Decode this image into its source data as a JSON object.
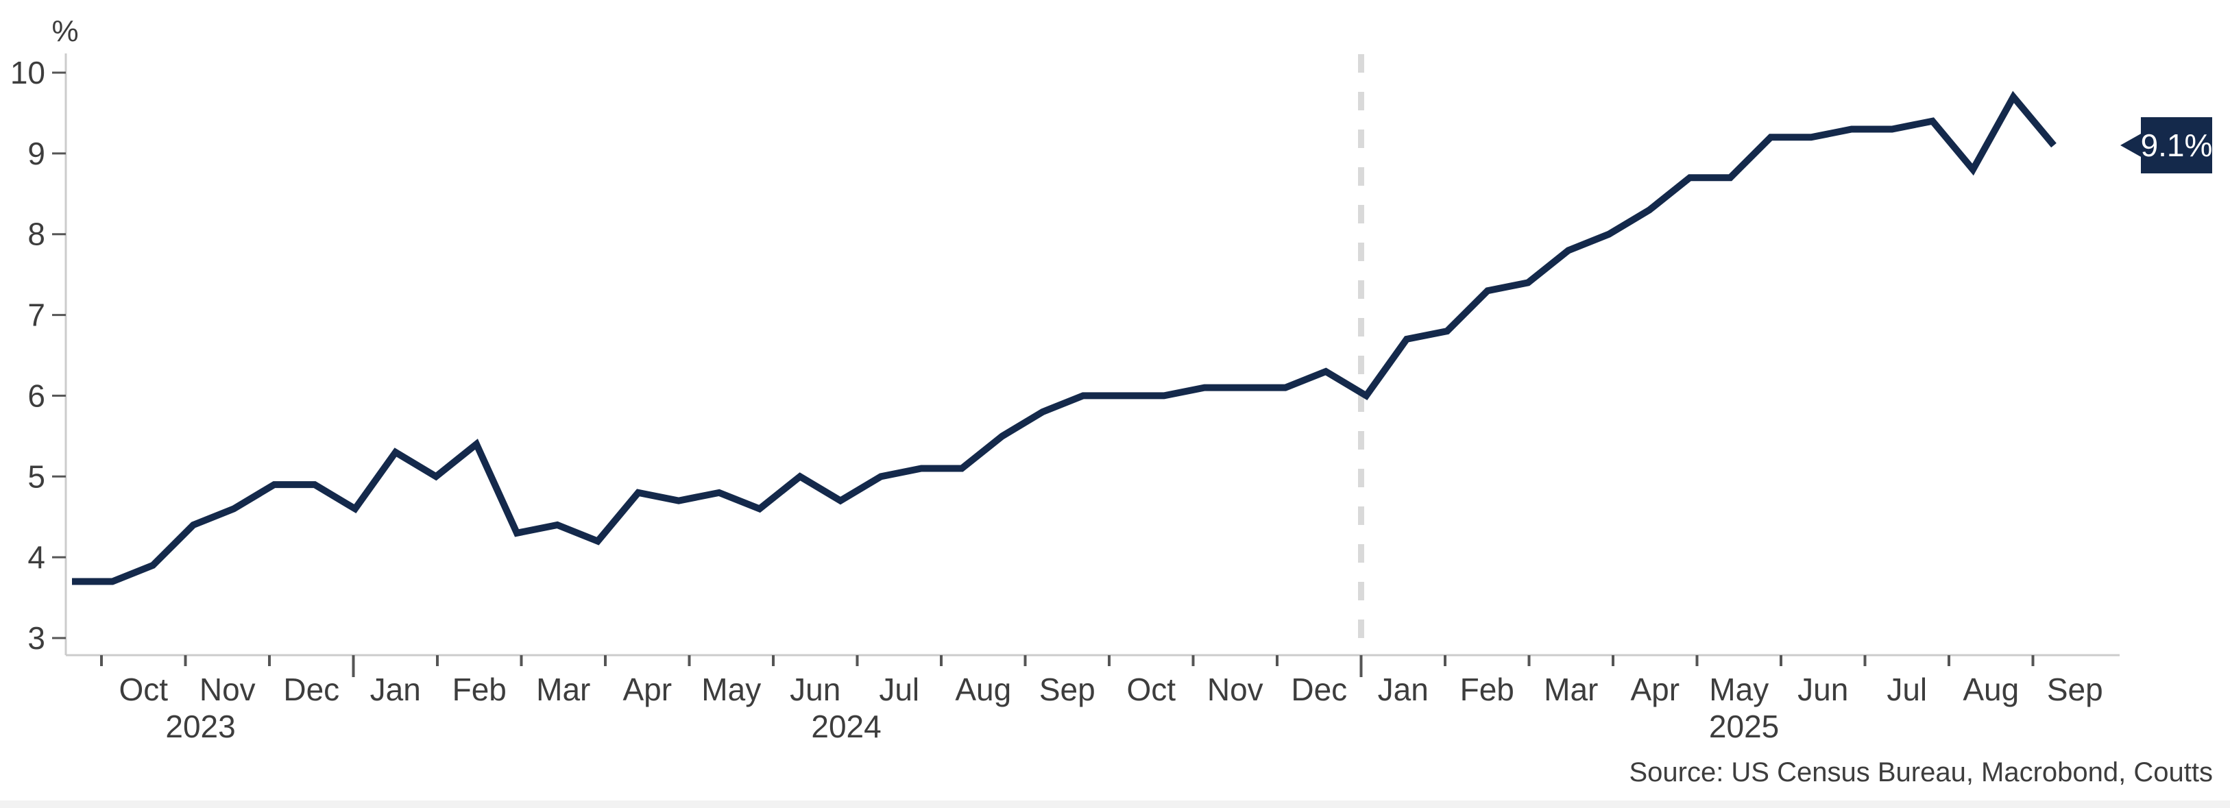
{
  "chart_data": {
    "type": "line",
    "unit_label": "%",
    "period": "Oct 2023 - Sep 2025",
    "frequency": "biweekly",
    "ylim": [
      3,
      10
    ],
    "yticks": [
      10,
      9,
      8,
      7,
      6,
      5,
      4,
      3
    ],
    "x_months": [
      "Oct",
      "Nov",
      "Dec",
      "Jan",
      "Feb",
      "Mar",
      "Apr",
      "May",
      "Jun",
      "Jul",
      "Aug",
      "Sep",
      "Oct",
      "Nov",
      "Dec",
      "Jan",
      "Feb",
      "Mar",
      "Apr",
      "May",
      "Jun",
      "Jul",
      "Aug",
      "Sep"
    ],
    "x_years": [
      {
        "label": "2023",
        "pos": 1.18
      },
      {
        "label": "2024",
        "pos": 8.87
      },
      {
        "label": "2025",
        "pos": 19.56
      }
    ],
    "year_tick_boundaries": [
      3,
      15
    ],
    "divider": {
      "month_boundary": 15,
      "style": "dashed",
      "meaning": "start of Jan 2025"
    },
    "values": [
      3.7,
      3.7,
      3.9,
      4.4,
      4.6,
      4.9,
      4.9,
      4.6,
      5.3,
      5.0,
      5.4,
      4.3,
      4.4,
      4.2,
      4.8,
      4.7,
      4.8,
      4.6,
      5.0,
      4.7,
      5.0,
      5.1,
      5.1,
      5.5,
      5.8,
      6.0,
      6.0,
      6.0,
      6.1,
      6.1,
      6.1,
      6.3,
      6.0,
      6.7,
      6.8,
      7.3,
      7.4,
      7.8,
      8.0,
      8.3,
      8.7,
      8.7,
      9.2,
      9.2,
      9.3,
      9.3,
      9.4,
      8.8,
      9.7,
      9.1
    ],
    "annotation": {
      "text": "9.1%",
      "value": 9.1
    },
    "source": "Source: US Census Bureau, Macrobond, Coutts",
    "grid": "off",
    "legend": "none",
    "colors": {
      "line": "#14294b",
      "callout_bg": "#14294b",
      "callout_text": "#ffffff",
      "dashed_line": "#d9d9d9",
      "axis_line": "#cccccc",
      "tick": "#555555",
      "text": "#3d3d3d",
      "footer_band": "#f2f2f2"
    }
  }
}
